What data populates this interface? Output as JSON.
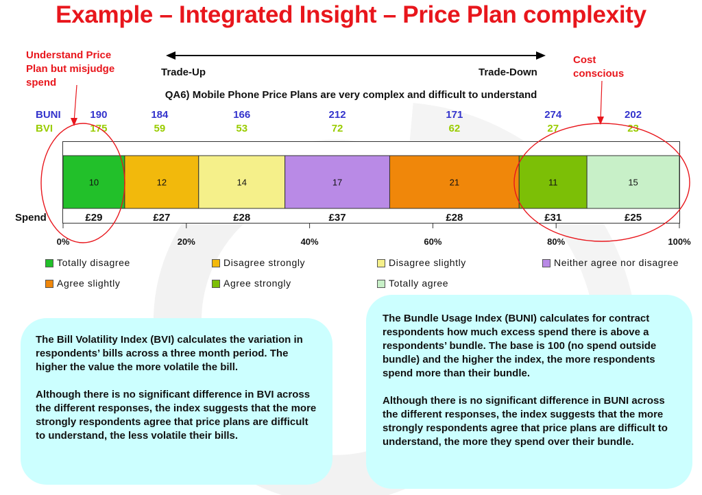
{
  "title": "Example – Integrated Insight – Price Plan complexity",
  "callouts": {
    "left": [
      "Understand Price",
      "Plan but misjudge",
      "spend"
    ],
    "right": [
      "Cost",
      "conscious"
    ]
  },
  "trade": {
    "up": "Trade-Up",
    "down": "Trade-Down"
  },
  "question": "QA6) Mobile Phone Price Plans are very complex and difficult to understand",
  "index_rows": {
    "buni_label": "BUNI",
    "bvi_label": "BVI",
    "spend_label": "Spend"
  },
  "chart_data": {
    "type": "bar",
    "orientation": "horizontal-stacked-100",
    "categories": [
      "Totally disagree",
      "Disagree strongly",
      "Disagree slightly",
      "Neither agree nor disagree",
      "Agree slightly",
      "Agree strongly",
      "Totally agree"
    ],
    "values": [
      10,
      12,
      14,
      17,
      21,
      11,
      15
    ],
    "colors": [
      "#22c02a",
      "#f2b90c",
      "#f5f08a",
      "#b98ae6",
      "#f0870a",
      "#7cbf06",
      "#c8f0c8"
    ],
    "buni": [
      190,
      184,
      166,
      212,
      171,
      274,
      202
    ],
    "bvi": [
      175,
      59,
      53,
      72,
      62,
      27,
      23
    ],
    "spend": [
      "£29",
      "£27",
      "£28",
      "£37",
      "£28",
      "£31",
      "£25"
    ],
    "x_ticks": [
      "0%",
      "20%",
      "40%",
      "60%",
      "80%",
      "100%"
    ],
    "xlim": [
      0,
      100
    ],
    "legend_position": "bottom",
    "grid": false
  },
  "boxes": {
    "bvi": [
      "The Bill Volatility Index (BVI) calculates the variation in respondents’ bills across a three month period.  The higher the value the more volatile the bill.",
      "Although there is no significant difference in BVI across the different responses, the index suggests that the more strongly respondents agree that price plans are difficult to understand, the less volatile their bills."
    ],
    "buni": [
      "The Bundle Usage Index (BUNI) calculates for contract respondents how much excess spend there is above a respondents’ bundle.  The base is 100 (no spend outside bundle) and the higher the index, the more respondents spend more than their bundle.",
      "Although there is no significant difference in BUNI across the different responses, the index suggests that the more strongly respondents agree that price plans are difficult to understand, the more they spend over their bundle."
    ]
  },
  "colors": {
    "title": "#e8161c",
    "buni": "#3333cc",
    "bvi": "#99cc00",
    "box": "#ccffff"
  }
}
